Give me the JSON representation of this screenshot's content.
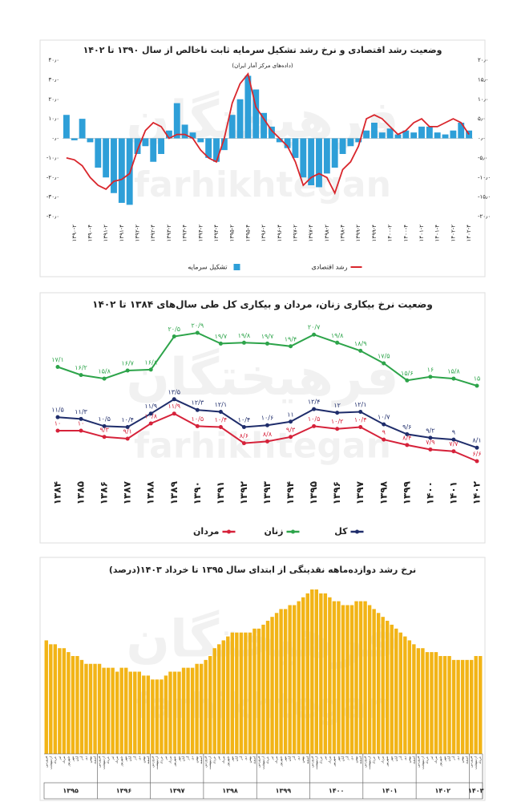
{
  "watermark": {
    "fa": "فرهیختگان",
    "en": "farhikhtegan"
  },
  "chart_data": [
    {
      "type": "combo",
      "title": "وضعیت رشد اقتصادی و نرخ رشد تشکیل سرمایه ثابت ناخالص از سال ۱۳۹۰ تا ۱۴۰۲",
      "subtitle": "(داده‌های مرکز آمار ایران)",
      "categories": [
        null,
        "۱۳۹۰-۲",
        null,
        "۱۳۹۰-۴",
        null,
        "۱۳۹۱-۲",
        null,
        "۱۳۹۱-۴",
        null,
        "۱۳۹۲-۲",
        null,
        "۱۳۹۲-۴",
        null,
        "۱۳۹۳-۲",
        null,
        "۱۳۹۳-۴",
        null,
        "۱۳۹۴-۲",
        null,
        "۱۳۹۴-۴",
        null,
        "۱۳۹۵-۲",
        null,
        "۱۳۹۵-۴",
        null,
        "۱۳۹۶-۲",
        null,
        "۱۳۹۶-۴",
        null,
        "۱۳۹۷-۲",
        null,
        "۱۳۹۷-۴",
        null,
        "۱۳۹۸-۲",
        null,
        "۱۳۹۸-۴",
        null,
        "۱۳۹۹-۲",
        null,
        "۱۳۹۹-۴",
        null,
        "۱۴۰۰-۲",
        null,
        "۱۴۰۰-۴",
        null,
        "۱۴۰۱-۲",
        null,
        "۱۴۰۱-۴",
        null,
        "۱۴۰۲-۲",
        null,
        "۱۴۰۲-۴"
      ],
      "series": [
        {
          "name": "تشکیل سرمایه",
          "type": "bar",
          "color": "#2e9fd8",
          "values": [
            12,
            -1,
            10,
            -2,
            -15,
            -20,
            -28,
            -33,
            -34,
            -8,
            -4,
            -12,
            -8,
            4,
            18,
            7,
            3,
            -2,
            -10,
            -12,
            -6,
            12,
            20,
            32,
            25,
            13,
            6,
            -2,
            -5,
            -10,
            -20,
            -24,
            -25,
            -18,
            -15,
            -8,
            -4,
            -2,
            4,
            8,
            3,
            5,
            2,
            4,
            3,
            6,
            6,
            3,
            2,
            4,
            8,
            4
          ]
        },
        {
          "name": "رشد اقتصادی",
          "type": "line",
          "axis": "y2",
          "color": "#d9262c",
          "values": [
            -5,
            -5.5,
            -7,
            -10,
            -12,
            -13,
            -11,
            -10.5,
            -9,
            -3,
            2,
            4,
            3,
            0,
            1,
            1,
            0,
            -3,
            -5,
            -6,
            0,
            9,
            14,
            16.5,
            8,
            5,
            2,
            0,
            -2,
            -6,
            -12,
            -10,
            -9,
            -10,
            -14,
            -8,
            -6,
            -2,
            5,
            6,
            5,
            3,
            1,
            2,
            4,
            5,
            3,
            3,
            4,
            5,
            4,
            1
          ]
        }
      ],
      "ylim": [
        -40,
        40
      ],
      "yticks": [
        {
          "value": 40,
          "label": "۴۰٫۰"
        },
        {
          "value": 30,
          "label": "۳۰٫۰"
        },
        {
          "value": 20,
          "label": "۲۰٫۰"
        },
        {
          "value": 10,
          "label": "۱۰٫۰"
        },
        {
          "value": 0,
          "label": "۰٫۰"
        },
        {
          "value": -10,
          "label": "-۱۰٫۰"
        },
        {
          "value": -20,
          "label": "-۲۰٫۰"
        },
        {
          "value": -30,
          "label": "-۳۰٫۰"
        },
        {
          "value": -40,
          "label": "-۴۰٫۰"
        }
      ],
      "y2lim": [
        -20,
        20
      ],
      "y2ticks": [
        {
          "value": 20,
          "label": "۲۰٫۰"
        },
        {
          "value": 15,
          "label": "۱۵٫۰"
        },
        {
          "value": 10,
          "label": "۱۰٫۰"
        },
        {
          "value": 5,
          "label": "۵٫۰"
        },
        {
          "value": 0,
          "label": "۰٫۰"
        },
        {
          "value": -5,
          "label": "-۵٫۰"
        },
        {
          "value": -10,
          "label": "-۱۰٫۰"
        },
        {
          "value": -15,
          "label": "-۱۵٫۰"
        },
        {
          "value": -20,
          "label": "-۲۰٫۰"
        }
      ]
    },
    {
      "type": "line",
      "title": "وضعیت نرخ بیکاری زنان، مردان و بیکاری کل طی سال‌های ۱۳۸۴ تا ۱۴۰۲",
      "categories": [
        "۱۳۸۴",
        "۱۳۸۵",
        "۱۳۸۶",
        "۱۳۸۷",
        "۱۳۸۸",
        "۱۳۸۹",
        "۱۳۹۰",
        "۱۳۹۱",
        "۱۳۹۲",
        "۱۳۹۳",
        "۱۳۹۴",
        "۱۳۹۵",
        "۱۳۹۶",
        "۱۳۹۷",
        "۱۳۹۸",
        "۱۳۹۹",
        "۱۴۰۰",
        "۱۴۰۱",
        "۱۴۰۲"
      ],
      "series": [
        {
          "name": "کل",
          "color": "#1f2d6b",
          "values": [
            11.5,
            11.3,
            10.5,
            10.4,
            11.9,
            13.5,
            12.3,
            12.1,
            10.4,
            10.6,
            11,
            12.4,
            12,
            12.1,
            10.7,
            9.6,
            9.2,
            9,
            8.1
          ],
          "value_labels": [
            "۱۱/۵",
            "۱۱/۳",
            "۱۰/۵",
            "۱۰/۴",
            "۱۱/۹",
            "۱۳/۵",
            "۱۲/۳",
            "۱۲/۱",
            "۱۰/۴",
            "۱۰/۶",
            "۱۱",
            "۱۲/۴",
            "۱۲",
            "۱۲/۱",
            "۱۰/۷",
            "۹/۶",
            "۹/۲",
            "۹",
            "۸/۱"
          ]
        },
        {
          "name": "زنان",
          "color": "#2da44a",
          "values": [
            17.1,
            16.2,
            15.8,
            16.7,
            16.8,
            20.5,
            20.9,
            19.7,
            19.8,
            19.7,
            19.4,
            20.7,
            19.8,
            18.9,
            17.5,
            15.6,
            16,
            15.8,
            15
          ],
          "value_labels": [
            "۱۷/۱",
            "۱۶/۲",
            "۱۵/۸",
            "۱۶/۷",
            "۱۶/۸",
            "۲۰/۵",
            "۲۰/۹",
            "۱۹/۷",
            "۱۹/۸",
            "۱۹/۷",
            "۱۹/۴",
            "۲۰/۷",
            "۱۹/۸",
            "۱۸/۹",
            "۱۷/۵",
            "۱۵/۶",
            "۱۶",
            "۱۵/۸",
            "۱۵"
          ]
        },
        {
          "name": "مردان",
          "color": "#d6223a",
          "values": [
            10,
            10,
            9.3,
            9.1,
            10.8,
            11.9,
            10.5,
            10.4,
            8.6,
            8.8,
            9.3,
            10.5,
            10.2,
            10.4,
            9,
            8.4,
            7.9,
            7.7,
            6.6
          ],
          "value_labels": [
            "۱۰",
            "۱۰",
            "۹/۳",
            "۹/۱",
            "۱۰/۸",
            "۱۱/۹",
            "۱۰/۵",
            "۱۰/۴",
            "۸/۶",
            "۸/۸",
            "۹/۳",
            "۱۰/۵",
            "۱۰/۲",
            "۱۰/۴",
            "۹",
            "۸/۴",
            "۷/۹",
            "۷/۷",
            "۶/۶"
          ]
        }
      ]
    },
    {
      "type": "bar",
      "title": "نرخ رشد دوازده‌ماهه نقدینگی از ابتدای سال ۱۳۹۵ تا خرداد ۱۴۰۳(درصد)",
      "color": "#f2b416",
      "years": [
        "۱۳۹۵",
        "۱۳۹۶",
        "۱۳۹۷",
        "۱۳۹۸",
        "۱۳۹۹",
        "۱۴۰۰",
        "۱۴۰۱",
        "۱۴۰۲",
        "۱۴۰۳"
      ],
      "categories": [
        "فروردین",
        "اردیبهشت",
        "خرداد",
        "تیر",
        "مرداد",
        "شهریور",
        "مهر",
        "آبان",
        "آذر",
        "دی",
        "بهمن",
        "اسفند",
        "فروردین",
        "اردیبهشت",
        "خرداد",
        "تیر",
        "مرداد",
        "شهریور",
        "مهر",
        "آبان",
        "آذر",
        "دی",
        "بهمن",
        "اسفند",
        "فروردین",
        "اردیبهشت",
        "خرداد",
        "تیر",
        "مرداد",
        "شهریور",
        "مهر",
        "آبان",
        "آذر",
        "دی",
        "بهمن",
        "اسفند",
        "فروردین",
        "اردیبهشت",
        "خرداد",
        "تیر",
        "مرداد",
        "شهریور",
        "مهر",
        "آبان",
        "آذر",
        "دی",
        "بهمن",
        "اسفند",
        "فروردین",
        "اردیبهشت",
        "خرداد",
        "تیر",
        "مرداد",
        "شهریور",
        "مهر",
        "آبان",
        "آذر",
        "دی",
        "بهمن",
        "اسفند",
        "فروردین",
        "اردیبهشت",
        "خرداد",
        "تیر",
        "مرداد",
        "شهریور",
        "مهر",
        "آبان",
        "آذر",
        "دی",
        "بهمن",
        "اسفند",
        "فروردین",
        "اردیبهشت",
        "خرداد",
        "تیر",
        "مرداد",
        "شهریور",
        "مهر",
        "آبان",
        "آذر",
        "دی",
        "بهمن",
        "اسفند",
        "فروردین",
        "اردیبهشت",
        "خرداد",
        "تیر",
        "مرداد",
        "شهریور",
        "مهر",
        "آبان",
        "آذر",
        "دی",
        "بهمن",
        "اسفند",
        "فروردین",
        "اردیبهشت",
        "خرداد"
      ],
      "values": [
        29,
        28,
        28,
        27,
        27,
        26,
        25,
        25,
        24,
        23,
        23,
        23,
        23,
        22,
        22,
        22,
        21,
        22,
        22,
        21,
        21,
        21,
        20,
        20,
        19,
        19,
        19,
        20,
        21,
        21,
        21,
        22,
        22,
        22,
        23,
        23,
        24,
        25,
        27,
        28,
        29,
        30,
        31,
        31,
        31,
        31,
        31,
        32,
        32,
        33,
        34,
        35,
        36,
        37,
        37,
        38,
        38,
        39,
        40,
        41,
        42,
        42,
        41,
        41,
        40,
        39,
        39,
        38,
        38,
        38,
        39,
        39,
        39,
        38,
        37,
        36,
        35,
        34,
        33,
        32,
        31,
        30,
        29,
        28,
        27,
        27,
        26,
        26,
        26,
        25,
        25,
        25,
        24,
        24,
        24,
        24,
        24,
        25,
        25
      ]
    }
  ]
}
